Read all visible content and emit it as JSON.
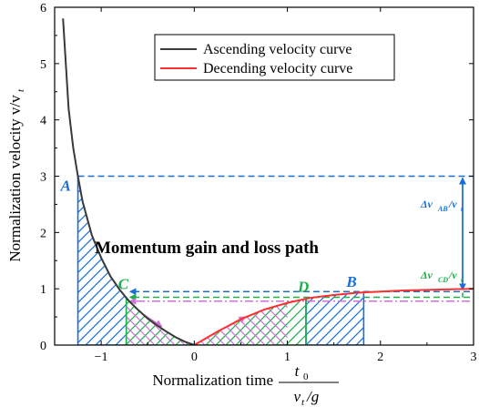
{
  "chart_data": {
    "type": "line",
    "xlabel": "Normalization time",
    "xlabel_fraction": {
      "numerator": "t",
      "numerator_sub": "0",
      "denominator": "v",
      "denominator_sub": "t",
      "denominator_tail": "/g"
    },
    "ylabel": "Normalization velocity v/v",
    "ylabel_sub": "t",
    "xlim": [
      -1.5,
      3
    ],
    "ylim": [
      0,
      6
    ],
    "xticks": [
      -1,
      0,
      1,
      2,
      3
    ],
    "yticks": [
      0,
      1,
      2,
      3,
      4,
      5,
      6
    ],
    "grid": false,
    "legend_position": "top-right",
    "series": [
      {
        "name": "Ascending velocity curve",
        "color": "#3a3a3a",
        "x": [
          -1.41,
          -1.35,
          -1.3,
          -1.25,
          -1.2,
          -1.1,
          -1.0,
          -0.9,
          -0.8,
          -0.7,
          -0.6,
          -0.5,
          -0.4,
          -0.3,
          -0.2,
          -0.1,
          0.0
        ],
        "y": [
          5.8,
          4.2,
          3.5,
          3.0,
          2.55,
          1.95,
          1.55,
          1.22,
          0.98,
          0.78,
          0.62,
          0.47,
          0.35,
          0.24,
          0.14,
          0.06,
          0.0
        ]
      },
      {
        "name": "Decending velocity curve",
        "color": "#ff3030",
        "x": [
          0.0,
          0.25,
          0.5,
          0.75,
          1.0,
          1.25,
          1.5,
          1.75,
          2.0,
          2.25,
          2.5,
          2.75,
          3.0
        ],
        "y": [
          0.0,
          0.24,
          0.46,
          0.63,
          0.75,
          0.84,
          0.89,
          0.93,
          0.95,
          0.97,
          0.98,
          0.99,
          1.0
        ]
      }
    ],
    "annotations": {
      "title": "Momentum gain and loss path",
      "points": [
        {
          "label": "A",
          "x": -1.25,
          "y": 3.0,
          "color": "#1a6fd6"
        },
        {
          "label": "B",
          "x": 1.82,
          "y": 0.94,
          "color": "#1a6fd6"
        },
        {
          "label": "C",
          "x": -0.73,
          "y": 0.93,
          "color": "#1ab04a"
        },
        {
          "label": "D",
          "x": 1.2,
          "y": 0.85,
          "color": "#1ab04a"
        }
      ],
      "delta_ab": {
        "text": "Δv",
        "sub": "AB",
        "tail": "/v",
        "tail_sub": "t",
        "y_top": 3.0,
        "y_bottom": 0.95,
        "color": "#1a6fd6"
      },
      "delta_cd": {
        "text": "Δv",
        "sub": "CD",
        "tail": "/v",
        "tail_sub": "t",
        "y_top": 0.93,
        "y_bottom": 0.85,
        "color": "#1ab04a"
      },
      "dashed_levels": [
        {
          "y": 3.0,
          "color": "#1a6fd6"
        },
        {
          "y": 0.95,
          "color": "#1a6fd6"
        },
        {
          "y": 0.85,
          "color": "#1ab04a"
        },
        {
          "y": 0.78,
          "color": "#e070e0"
        }
      ],
      "colors": {
        "blue": "#1a6fd6",
        "green": "#1ab04a",
        "magenta": "#d070d8"
      }
    }
  }
}
